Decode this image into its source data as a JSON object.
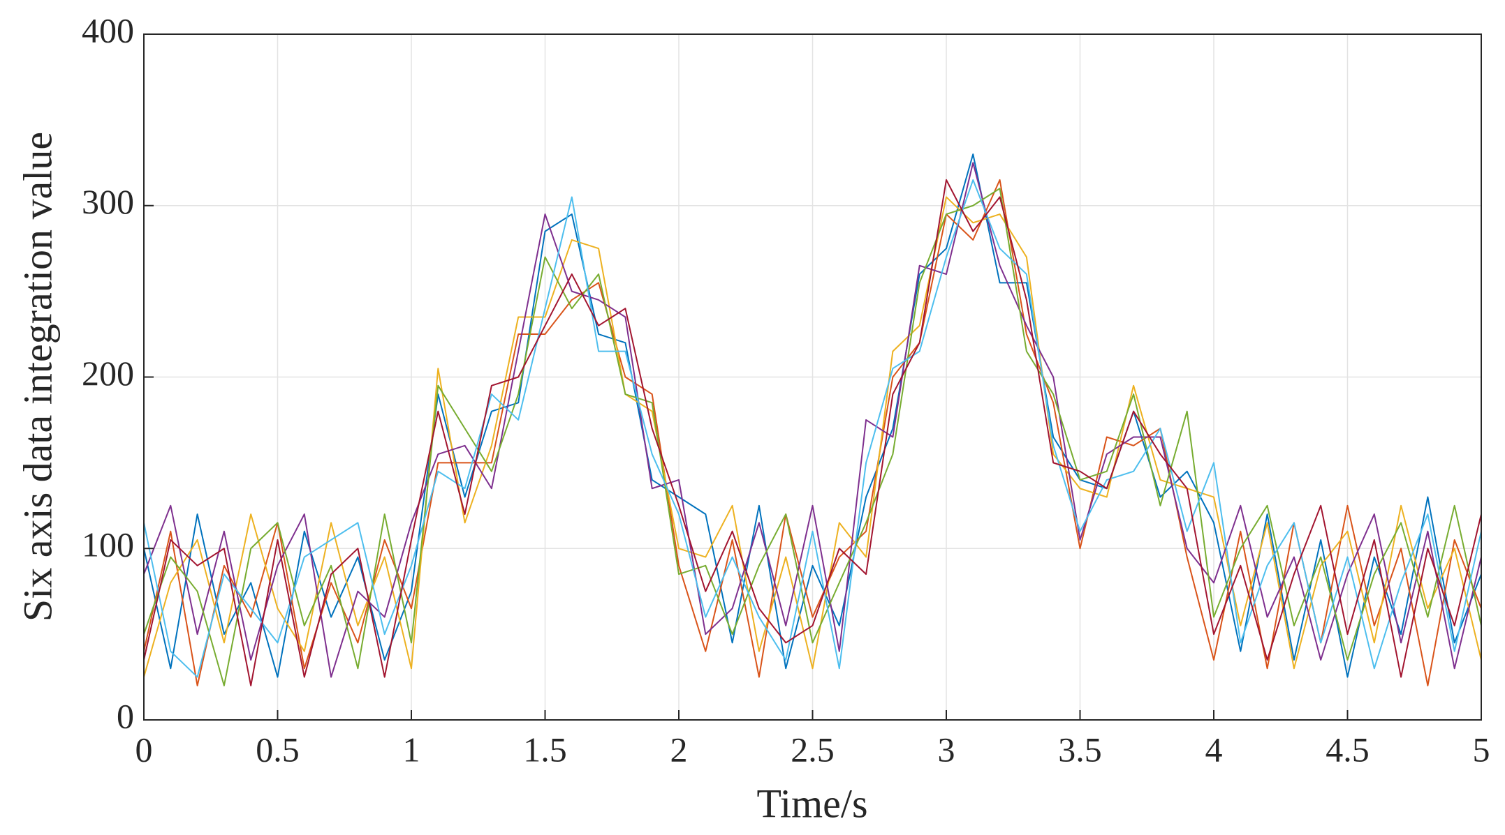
{
  "chart_data": {
    "type": "line",
    "xlabel": "Time/s",
    "ylabel": "Six axis data integration value",
    "x": [
      0,
      0.1,
      0.2,
      0.3,
      0.4,
      0.5,
      0.6,
      0.7,
      0.8,
      0.9,
      1,
      1.1,
      1.2,
      1.3,
      1.4,
      1.5,
      1.6,
      1.7,
      1.8,
      1.9,
      2,
      2.1,
      2.2,
      2.3,
      2.4,
      2.5,
      2.6,
      2.7,
      2.8,
      2.9,
      3,
      3.1,
      3.2,
      3.3,
      3.4,
      3.5,
      3.6,
      3.7,
      3.8,
      3.9,
      4,
      4.1,
      4.2,
      4.3,
      4.4,
      4.5,
      4.6,
      4.7,
      4.8,
      4.9,
      5
    ],
    "series": [
      {
        "color": "#0072BD",
        "values": [
          100,
          30,
          120,
          50,
          80,
          25,
          110,
          60,
          95,
          35,
          75,
          190,
          130,
          180,
          185,
          285,
          295,
          225,
          220,
          140,
          130,
          120,
          45,
          125,
          30,
          90,
          55,
          130,
          170,
          260,
          275,
          330,
          255,
          255,
          165,
          140,
          135,
          180,
          130,
          145,
          115,
          40,
          120,
          35,
          105,
          25,
          95,
          50,
          130,
          45,
          85
        ]
      },
      {
        "color": "#D95319",
        "values": [
          40,
          110,
          20,
          90,
          60,
          115,
          30,
          80,
          45,
          105,
          65,
          150,
          150,
          150,
          225,
          225,
          245,
          255,
          200,
          190,
          90,
          40,
          105,
          25,
          120,
          60,
          95,
          110,
          200,
          220,
          295,
          280,
          315,
          225,
          185,
          100,
          165,
          160,
          170,
          95,
          35,
          110,
          30,
          115,
          45,
          125,
          55,
          100,
          20,
          105,
          65
        ]
      },
      {
        "color": "#EDB120",
        "values": [
          25,
          80,
          105,
          45,
          120,
          65,
          40,
          115,
          55,
          95,
          30,
          205,
          115,
          160,
          235,
          235,
          280,
          275,
          190,
          180,
          100,
          95,
          125,
          40,
          95,
          30,
          115,
          95,
          215,
          230,
          305,
          290,
          295,
          270,
          155,
          135,
          130,
          195,
          140,
          135,
          130,
          55,
          115,
          30,
          90,
          110,
          45,
          125,
          65,
          100,
          35
        ]
      },
      {
        "color": "#7E2F8E",
        "values": [
          85,
          125,
          50,
          110,
          35,
          90,
          120,
          25,
          75,
          60,
          115,
          155,
          160,
          135,
          215,
          295,
          250,
          245,
          235,
          135,
          140,
          50,
          65,
          115,
          55,
          125,
          40,
          175,
          165,
          265,
          260,
          325,
          265,
          230,
          200,
          105,
          155,
          165,
          165,
          100,
          80,
          125,
          60,
          95,
          35,
          85,
          120,
          45,
          110,
          30,
          95
        ]
      },
      {
        "color": "#77AC30",
        "values": [
          50,
          95,
          75,
          20,
          100,
          115,
          55,
          90,
          30,
          120,
          45,
          195,
          170,
          145,
          190,
          270,
          240,
          260,
          190,
          185,
          85,
          90,
          50,
          90,
          120,
          45,
          80,
          115,
          155,
          255,
          295,
          300,
          310,
          215,
          190,
          140,
          145,
          190,
          125,
          180,
          60,
          100,
          125,
          55,
          95,
          35,
          85,
          115,
          60,
          125,
          55
        ]
      },
      {
        "color": "#4DBEEE",
        "values": [
          115,
          40,
          25,
          85,
          65,
          45,
          95,
          105,
          115,
          50,
          90,
          145,
          135,
          190,
          175,
          240,
          305,
          215,
          215,
          155,
          120,
          60,
          95,
          60,
          35,
          110,
          30,
          150,
          205,
          215,
          270,
          315,
          275,
          260,
          160,
          110,
          140,
          145,
          170,
          110,
          150,
          45,
          90,
          115,
          45,
          95,
          30,
          80,
          120,
          40,
          110
        ]
      },
      {
        "color": "#A2142F",
        "values": [
          35,
          105,
          90,
          100,
          20,
          105,
          25,
          85,
          100,
          25,
          105,
          180,
          120,
          195,
          200,
          230,
          260,
          230,
          240,
          170,
          125,
          75,
          110,
          65,
          45,
          55,
          100,
          85,
          190,
          220,
          315,
          285,
          305,
          245,
          150,
          145,
          135,
          180,
          155,
          135,
          50,
          90,
          35,
          85,
          125,
          50,
          105,
          25,
          100,
          55,
          120
        ]
      }
    ],
    "xlim": [
      0,
      5
    ],
    "xticks": [
      0,
      0.5,
      1,
      1.5,
      2,
      2.5,
      3,
      3.5,
      4,
      4.5,
      5
    ],
    "ylim": [
      0,
      400
    ],
    "yticks": [
      0,
      100,
      200,
      300,
      400
    ],
    "grid": true
  }
}
